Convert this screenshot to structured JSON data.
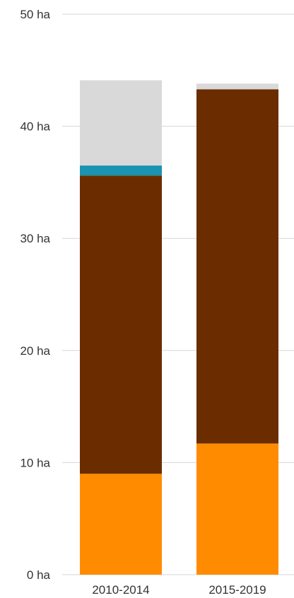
{
  "chart_data": {
    "type": "bar",
    "stacked": true,
    "categories": [
      "2010-2014",
      "2015-2019"
    ],
    "y_unit": "ha",
    "ylim": [
      0,
      50
    ],
    "y_ticks": [
      {
        "value": 0,
        "label": "0 ha"
      },
      {
        "value": 10,
        "label": "10 ha"
      },
      {
        "value": 20,
        "label": "20 ha"
      },
      {
        "value": 30,
        "label": "30 ha"
      },
      {
        "value": 40,
        "label": "40 ha"
      },
      {
        "value": 50,
        "label": "50 ha"
      }
    ],
    "grid": true,
    "series": [
      {
        "color": "#FF8C00",
        "values": [
          9.0,
          11.7
        ]
      },
      {
        "color": "#6B2D00",
        "values": [
          26.6,
          31.6
        ]
      },
      {
        "color": "#1A94B0",
        "values": [
          0.9,
          0.0
        ]
      },
      {
        "color": "#D9D9D9",
        "values": [
          7.6,
          0.5
        ]
      }
    ]
  }
}
